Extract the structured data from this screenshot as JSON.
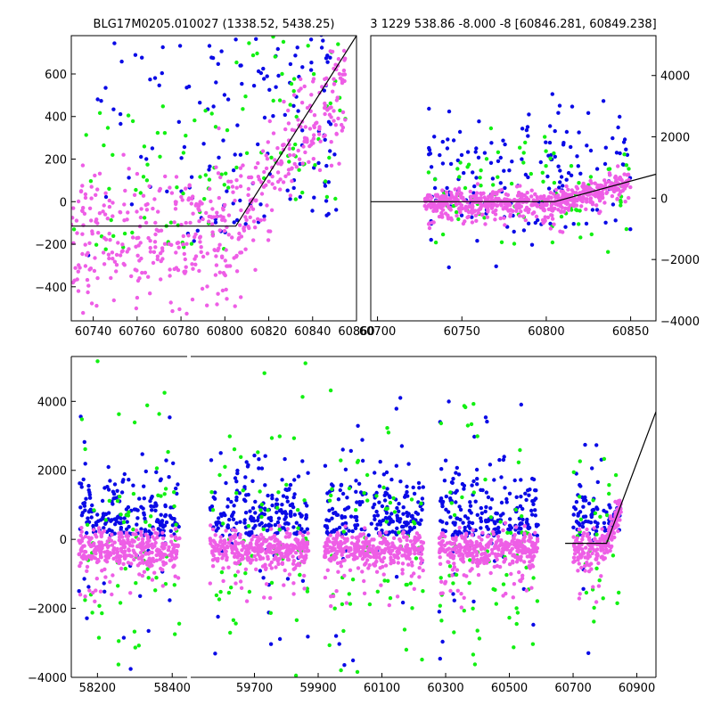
{
  "chart_data": [
    {
      "type": "scatter",
      "id": "top-left",
      "title": "BLG17M0205.010027 (1338.52, 5438.25)",
      "xlim": [
        60730,
        60860
      ],
      "ylim": [
        -560,
        780
      ],
      "xticks": [
        60740,
        60760,
        60780,
        60800,
        60820,
        60840,
        60860
      ],
      "yticks": [
        -400,
        -200,
        0,
        200,
        400,
        600
      ],
      "ytick_side": "left",
      "colors": {
        "blue": "#0a0ae6",
        "green": "#12f012",
        "pink": "#ee5ee6"
      },
      "model_line": [
        [
          60730,
          -115
        ],
        [
          60805,
          -115
        ],
        [
          60860,
          780
        ]
      ],
      "scatter_params": {
        "seed": 11,
        "n_pink": 520,
        "n_blue": 180,
        "n_green": 110
      }
    },
    {
      "type": "scatter",
      "id": "top-right",
      "title": "3 1229 538.86 -8.000 -8 [60846.281, 60849.238]",
      "xlim": [
        60696,
        60865
      ],
      "ylim": [
        -4000,
        5300
      ],
      "xticks": [
        60700,
        60750,
        60800,
        60850
      ],
      "yticks": [
        -4000,
        -2000,
        0,
        2000,
        4000
      ],
      "ytick_side": "right",
      "colors": {
        "blue": "#0a0ae6",
        "green": "#12f012",
        "pink": "#ee5ee6"
      },
      "model_line": [
        [
          60696,
          -115
        ],
        [
          60805,
          -115
        ],
        [
          60865,
          780
        ]
      ],
      "scatter_params": {
        "seed": 23,
        "n_pink": 600,
        "n_blue": 170,
        "n_green": 90
      }
    },
    {
      "type": "scatter",
      "id": "bottom",
      "broken_x_axis": true,
      "ylim": [
        -4000,
        5300
      ],
      "yticks": [
        -4000,
        -2000,
        0,
        2000,
        4000
      ],
      "ytick_side": "left",
      "colors": {
        "blue": "#0a0ae6",
        "green": "#12f012",
        "pink": "#ee5ee6"
      },
      "segments": [
        {
          "xlim": [
            58130,
            58440
          ],
          "xticks": [
            58200,
            58400
          ],
          "clusters": [
            [
              58150,
              58420
            ]
          ]
        },
        {
          "xlim": [
            59500,
            60960
          ],
          "xticks": [
            59700,
            59900,
            60100,
            60300,
            60500,
            60700,
            60900
          ],
          "clusters": [
            [
              59560,
              59870
            ],
            [
              59920,
              60230
            ],
            [
              60280,
              60590
            ],
            [
              60700,
              60850
            ]
          ]
        }
      ],
      "model_line": [
        [
          60675,
          -115
        ],
        [
          60805,
          -115
        ],
        [
          60960,
          3700
        ]
      ],
      "scatter_params": {
        "seed": 37
      }
    }
  ]
}
